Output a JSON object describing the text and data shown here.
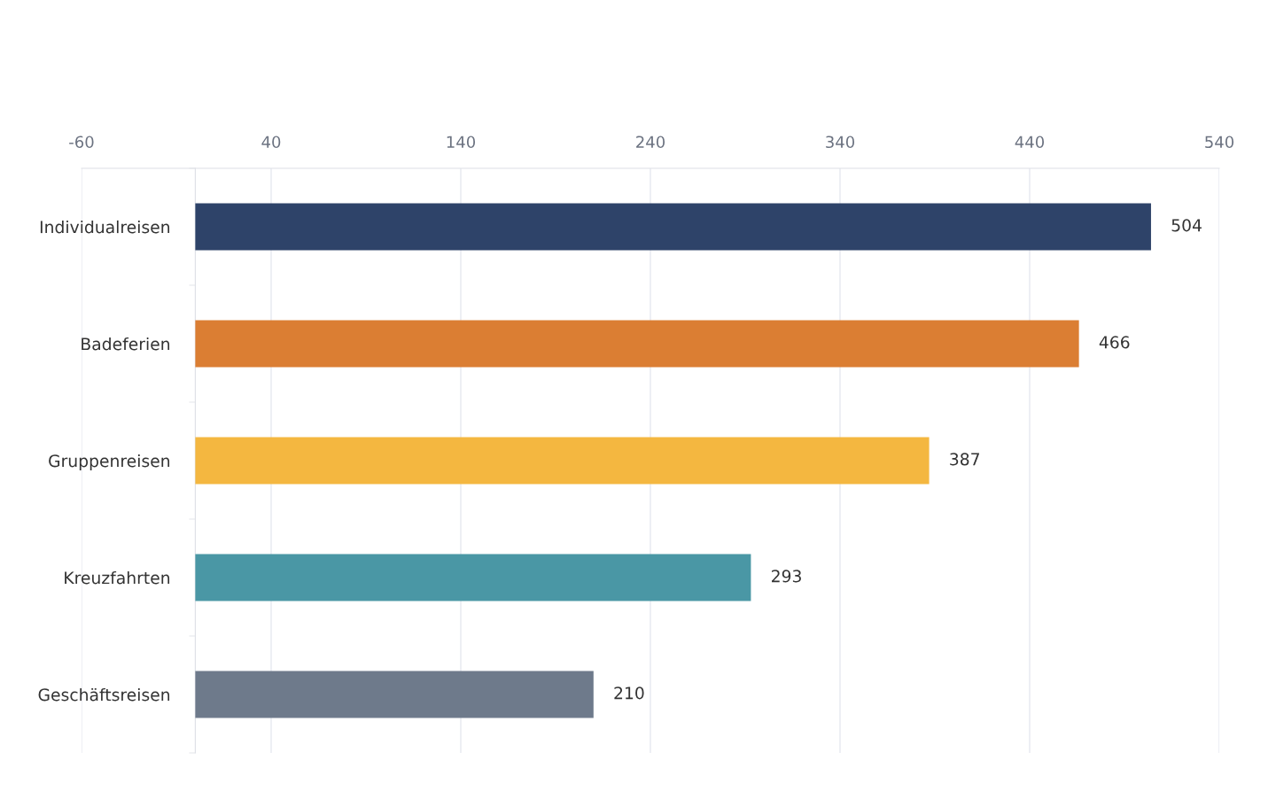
{
  "chart_data": {
    "type": "bar",
    "orientation": "horizontal",
    "categories": [
      "Individualreisen",
      "Badeferien",
      "Gruppenreisen",
      "Kreuzfahrten",
      "Geschäftsreisen"
    ],
    "values": [
      504,
      466,
      387,
      293,
      210
    ],
    "colors": [
      "#2e4369",
      "#db7e33",
      "#f4b740",
      "#4a97a5",
      "#6e7a8b"
    ],
    "xlim": [
      -60,
      540
    ],
    "xticks": [
      -60,
      40,
      140,
      240,
      340,
      440,
      540
    ],
    "grid": "x",
    "data_labels": true
  }
}
